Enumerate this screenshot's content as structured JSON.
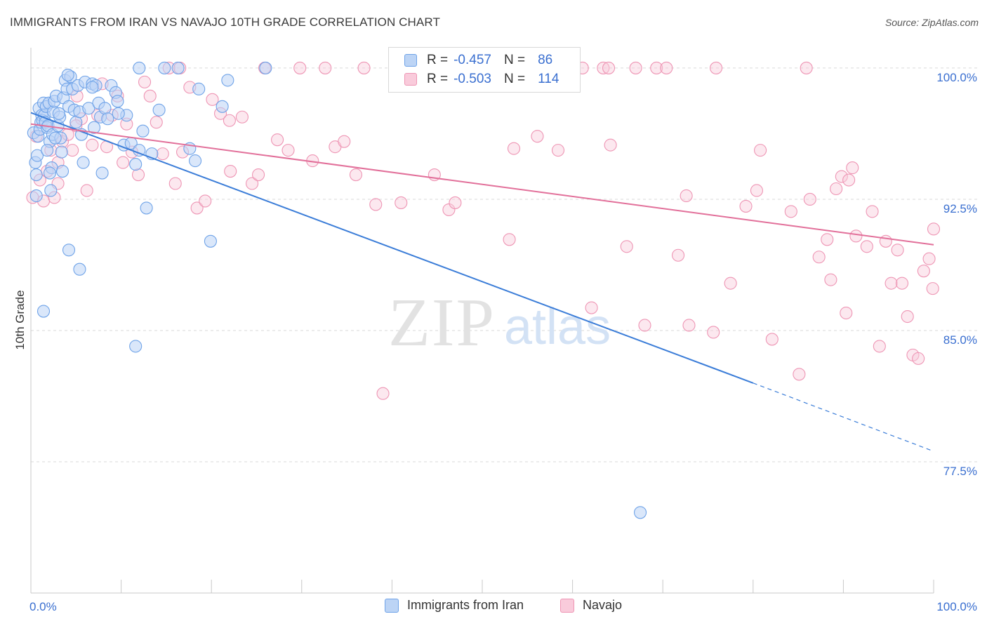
{
  "title": "IMMIGRANTS FROM IRAN VS NAVAJO 10TH GRADE CORRELATION CHART",
  "source": "Source: ZipAtlas.com",
  "watermark": {
    "zip": "ZIP",
    "atlas": "atlas"
  },
  "legend": {
    "rows": [
      {
        "r_label": "R =",
        "r_value": "-0.457",
        "n_label": "N =",
        "n_value": "86",
        "color": "#6fa3e8",
        "fill": "#bcd4f5"
      },
      {
        "r_label": "R =",
        "r_value": "-0.503",
        "n_label": "N =",
        "n_value": "114",
        "color": "#ee95b4",
        "fill": "#f9cbdb"
      }
    ]
  },
  "bottom_legend": [
    {
      "label": "Immigrants from Iran",
      "color": "#6fa3e8",
      "fill": "#bcd4f5"
    },
    {
      "label": "Navajo",
      "color": "#ee95b4",
      "fill": "#f9cbdb"
    }
  ],
  "chart_data": {
    "type": "scatter",
    "xlabel": "",
    "ylabel": "10th Grade",
    "xlim": [
      0,
      100
    ],
    "ylim": [
      70.0,
      101.0
    ],
    "x_tick_labels": [
      "0.0%",
      "100.0%"
    ],
    "y_ticks": [
      77.5,
      85.0,
      92.5,
      100.0
    ],
    "y_tick_labels": [
      "77.5%",
      "85.0%",
      "92.5%",
      "100.0%"
    ],
    "grid": true,
    "series": [
      {
        "name": "Immigrants from Iran",
        "color": "#6fa3e8",
        "line_color": "#3b7dd8",
        "trend": {
          "x0": 0,
          "y0": 97.45,
          "x1": 80,
          "y1": 82.0,
          "dash_to_x": 100,
          "dash_to_y": 78.1
        },
        "points": [
          [
            0.3,
            96.3
          ],
          [
            0.5,
            94.6
          ],
          [
            0.6,
            93.9
          ],
          [
            0.7,
            95.0
          ],
          [
            0.8,
            96.1
          ],
          [
            0.9,
            97.7
          ],
          [
            1.0,
            96.5
          ],
          [
            1.1,
            96.9
          ],
          [
            1.2,
            97.3
          ],
          [
            1.3,
            97.0
          ],
          [
            1.4,
            98.0
          ],
          [
            1.5,
            97.3
          ],
          [
            1.6,
            96.9
          ],
          [
            1.7,
            97.8
          ],
          [
            1.8,
            96.6
          ],
          [
            1.9,
            96.7
          ],
          [
            2.0,
            98.0
          ],
          [
            2.1,
            95.8
          ],
          [
            2.2,
            93.0
          ],
          [
            2.3,
            94.3
          ],
          [
            2.4,
            96.2
          ],
          [
            2.5,
            97.5
          ],
          [
            2.6,
            98.1
          ],
          [
            2.8,
            98.4
          ],
          [
            3.0,
            96.7
          ],
          [
            3.2,
            97.2
          ],
          [
            3.4,
            95.2
          ],
          [
            3.5,
            94.1
          ],
          [
            3.6,
            98.3
          ],
          [
            3.8,
            99.3
          ],
          [
            4.0,
            98.8
          ],
          [
            4.2,
            97.8
          ],
          [
            4.4,
            99.5
          ],
          [
            4.6,
            98.8
          ],
          [
            4.8,
            97.6
          ],
          [
            5.0,
            96.9
          ],
          [
            5.2,
            99.0
          ],
          [
            5.4,
            97.5
          ],
          [
            5.6,
            96.2
          ],
          [
            5.8,
            94.6
          ],
          [
            6.0,
            99.2
          ],
          [
            6.4,
            97.7
          ],
          [
            6.8,
            99.1
          ],
          [
            7.0,
            96.6
          ],
          [
            7.2,
            99.0
          ],
          [
            7.5,
            98.0
          ],
          [
            7.7,
            97.2
          ],
          [
            7.9,
            94.0
          ],
          [
            8.2,
            97.7
          ],
          [
            8.5,
            97.1
          ],
          [
            8.9,
            99.0
          ],
          [
            9.4,
            98.6
          ],
          [
            9.6,
            98.1
          ],
          [
            10.3,
            95.6
          ],
          [
            10.6,
            97.3
          ],
          [
            11.1,
            95.7
          ],
          [
            11.6,
            94.5
          ],
          [
            12.0,
            95.3
          ],
          [
            12.4,
            96.4
          ],
          [
            12.8,
            92.0
          ],
          [
            13.4,
            95.1
          ],
          [
            14.2,
            97.6
          ],
          [
            14.8,
            100.0
          ],
          [
            16.3,
            100.0
          ],
          [
            17.6,
            95.4
          ],
          [
            18.2,
            94.7
          ],
          [
            18.6,
            98.8
          ],
          [
            19.9,
            90.1
          ],
          [
            21.2,
            97.8
          ],
          [
            21.8,
            99.3
          ],
          [
            26.0,
            100.0
          ],
          [
            12.0,
            100.0
          ],
          [
            2.1,
            94.0
          ],
          [
            3.3,
            96.0
          ],
          [
            4.2,
            89.6
          ],
          [
            5.4,
            88.5
          ],
          [
            1.4,
            86.1
          ],
          [
            11.6,
            84.1
          ],
          [
            67.5,
            74.6
          ],
          [
            6.8,
            98.9
          ],
          [
            4.1,
            99.6
          ],
          [
            3.1,
            97.4
          ],
          [
            2.7,
            96.0
          ],
          [
            1.8,
            95.3
          ],
          [
            0.6,
            92.7
          ],
          [
            9.7,
            97.4
          ]
        ]
      },
      {
        "name": "Navajo",
        "color": "#ee95b4",
        "line_color": "#e2709a",
        "trend": {
          "x0": 0,
          "y0": 96.8,
          "x1": 100,
          "y1": 89.9
        },
        "points": [
          [
            0.2,
            92.6
          ],
          [
            0.6,
            96.1
          ],
          [
            1.0,
            93.6
          ],
          [
            1.4,
            92.4
          ],
          [
            1.8,
            94.1
          ],
          [
            2.2,
            95.3
          ],
          [
            2.6,
            92.6
          ],
          [
            3.0,
            93.4
          ],
          [
            3.5,
            95.8
          ],
          [
            4.1,
            96.2
          ],
          [
            4.6,
            95.3
          ],
          [
            5.1,
            98.4
          ],
          [
            5.6,
            97.1
          ],
          [
            6.2,
            93.0
          ],
          [
            6.8,
            95.6
          ],
          [
            7.4,
            97.3
          ],
          [
            7.9,
            99.1
          ],
          [
            8.4,
            95.5
          ],
          [
            9.0,
            97.3
          ],
          [
            9.6,
            98.4
          ],
          [
            10.2,
            94.6
          ],
          [
            10.6,
            96.8
          ],
          [
            11.2,
            95.2
          ],
          [
            11.9,
            93.9
          ],
          [
            12.6,
            99.2
          ],
          [
            13.2,
            98.4
          ],
          [
            13.9,
            96.9
          ],
          [
            14.6,
            95.1
          ],
          [
            15.3,
            100.0
          ],
          [
            16.0,
            93.4
          ],
          [
            16.8,
            95.2
          ],
          [
            17.6,
            98.9
          ],
          [
            18.4,
            92.0
          ],
          [
            19.3,
            92.4
          ],
          [
            20.1,
            98.2
          ],
          [
            21.0,
            97.4
          ],
          [
            22.1,
            94.1
          ],
          [
            23.4,
            97.2
          ],
          [
            24.5,
            93.4
          ],
          [
            25.2,
            93.9
          ],
          [
            25.9,
            100.0
          ],
          [
            27.3,
            95.9
          ],
          [
            28.5,
            95.3
          ],
          [
            29.8,
            100.0
          ],
          [
            31.2,
            94.7
          ],
          [
            32.6,
            100.0
          ],
          [
            33.7,
            95.5
          ],
          [
            34.7,
            95.8
          ],
          [
            36.0,
            93.9
          ],
          [
            36.9,
            100.0
          ],
          [
            38.2,
            92.2
          ],
          [
            39.0,
            81.4
          ],
          [
            41.0,
            92.3
          ],
          [
            42.8,
            100.0
          ],
          [
            44.7,
            93.9
          ],
          [
            46.3,
            91.9
          ],
          [
            47.0,
            92.3
          ],
          [
            49.5,
            100.0
          ],
          [
            53.0,
            90.2
          ],
          [
            53.5,
            95.4
          ],
          [
            56.1,
            96.1
          ],
          [
            58.4,
            95.3
          ],
          [
            61.1,
            100.0
          ],
          [
            62.1,
            86.3
          ],
          [
            63.4,
            100.0
          ],
          [
            64.2,
            95.6
          ],
          [
            66.0,
            89.8
          ],
          [
            68.0,
            85.3
          ],
          [
            69.3,
            100.0
          ],
          [
            70.4,
            100.0
          ],
          [
            71.7,
            89.3
          ],
          [
            72.6,
            92.7
          ],
          [
            72.9,
            85.3
          ],
          [
            75.6,
            84.9
          ],
          [
            75.9,
            100.0
          ],
          [
            77.5,
            87.7
          ],
          [
            79.2,
            92.1
          ],
          [
            80.4,
            93.0
          ],
          [
            80.8,
            95.3
          ],
          [
            82.1,
            84.5
          ],
          [
            84.2,
            91.8
          ],
          [
            85.1,
            82.5
          ],
          [
            85.9,
            100.0
          ],
          [
            86.3,
            92.5
          ],
          [
            87.3,
            89.2
          ],
          [
            88.2,
            90.2
          ],
          [
            88.6,
            87.9
          ],
          [
            89.2,
            93.1
          ],
          [
            89.8,
            93.8
          ],
          [
            90.3,
            86.0
          ],
          [
            90.6,
            93.6
          ],
          [
            91.0,
            94.3
          ],
          [
            91.4,
            90.4
          ],
          [
            92.6,
            89.8
          ],
          [
            93.2,
            91.8
          ],
          [
            94.0,
            84.1
          ],
          [
            94.7,
            90.1
          ],
          [
            95.3,
            87.7
          ],
          [
            96.0,
            89.6
          ],
          [
            96.5,
            87.7
          ],
          [
            97.1,
            85.8
          ],
          [
            97.7,
            83.6
          ],
          [
            98.3,
            83.4
          ],
          [
            98.9,
            88.4
          ],
          [
            99.5,
            89.1
          ],
          [
            99.9,
            87.4
          ],
          [
            100.0,
            90.8
          ],
          [
            60.0,
            100.0
          ],
          [
            64.0,
            100.0
          ],
          [
            67.0,
            100.0
          ],
          [
            16.5,
            100.0
          ],
          [
            22.0,
            97.0
          ],
          [
            5.0,
            96.7
          ],
          [
            3.0,
            94.6
          ]
        ]
      }
    ]
  }
}
